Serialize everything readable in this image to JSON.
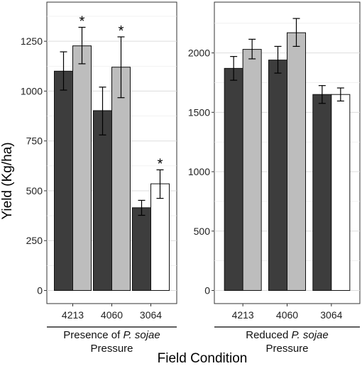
{
  "chart_data": {
    "type": "bar",
    "ylabel": "Yield (Kg/ha)",
    "xlabel": "Field Condition",
    "colors": {
      "dark": "#3d3d3d",
      "light": "#bdbdbd",
      "white": "#ffffff",
      "outline": "#111111"
    },
    "panels": [
      {
        "group_label_parts": [
          "Presence of ",
          "P. sojae"
        ],
        "group_label_line2": "Pressure",
        "ylim": [
          0,
          1400
        ],
        "yticks": [
          0,
          250,
          500,
          750,
          1000,
          1250
        ],
        "categories": [
          {
            "label": "4213",
            "bars": [
              {
                "color": "dark",
                "value": 1100,
                "low": 1005,
                "high": 1197
              },
              {
                "color": "light",
                "value": 1227,
                "low": 1137,
                "high": 1320,
                "star": "*"
              }
            ]
          },
          {
            "label": "4060",
            "bars": [
              {
                "color": "dark",
                "value": 902,
                "low": 780,
                "high": 1020
              },
              {
                "color": "light",
                "value": 1120,
                "low": 967,
                "high": 1272,
                "star": "*"
              }
            ]
          },
          {
            "label": "3064",
            "bars": [
              {
                "color": "dark",
                "value": 415,
                "low": 377,
                "high": 452
              },
              {
                "color": "white",
                "value": 535,
                "low": 462,
                "high": 605,
                "star": "*"
              }
            ]
          }
        ]
      },
      {
        "group_label_parts": [
          "Reduced ",
          "P. sojae"
        ],
        "group_label_line2": "Pressure",
        "ylim": [
          0,
          2350
        ],
        "yticks": [
          0,
          500,
          1000,
          1500,
          2000
        ],
        "categories": [
          {
            "label": "4213",
            "bars": [
              {
                "color": "dark",
                "value": 1870,
                "low": 1770,
                "high": 1970
              },
              {
                "color": "light",
                "value": 2030,
                "low": 1950,
                "high": 2115
              }
            ]
          },
          {
            "label": "4060",
            "bars": [
              {
                "color": "dark",
                "value": 1940,
                "low": 1830,
                "high": 2055
              },
              {
                "color": "light",
                "value": 2170,
                "low": 2055,
                "high": 2290
              }
            ]
          },
          {
            "label": "3064",
            "bars": [
              {
                "color": "dark",
                "value": 1650,
                "low": 1575,
                "high": 1725
              },
              {
                "color": "white",
                "value": 1650,
                "low": 1595,
                "high": 1705
              }
            ]
          }
        ]
      }
    ]
  }
}
